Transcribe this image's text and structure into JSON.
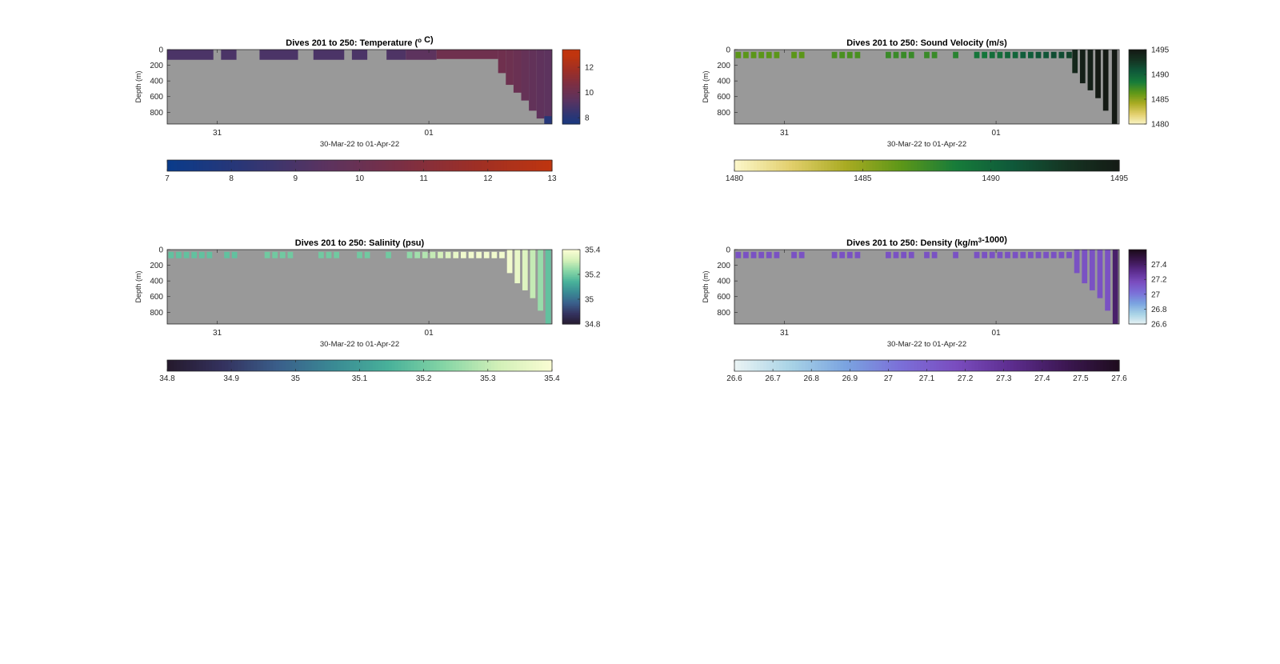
{
  "figure": {
    "background": "#ffffff",
    "axis_color": "#262626",
    "nodata_color": "#999999"
  },
  "chart_data": [
    {
      "type": "heatmap",
      "title_parts": [
        {
          "t": "Dives 201 to 250: Temperature ("
        },
        {
          "t": "o",
          "sup": true
        },
        {
          "t": " C)"
        }
      ],
      "xlabel": "30-Mar-22 to 01-Apr-22",
      "ylabel": "Depth (m)",
      "xticks": [
        {
          "label": "31",
          "frac": 0.13
        },
        {
          "label": "01",
          "frac": 0.68
        }
      ],
      "yticks": [
        "0",
        "200",
        "400",
        "600",
        "800"
      ],
      "ylim": [
        0,
        950
      ],
      "sideColorbar": {
        "ticks": [
          "12",
          "10",
          "8"
        ],
        "range": [
          7.5,
          13.4
        ]
      },
      "bottomColorbar": {
        "ticks": [
          "7",
          "8",
          "9",
          "10",
          "11",
          "12",
          "13"
        ],
        "range": [
          7,
          13
        ]
      },
      "colormap": [
        "#0a3b8a",
        "#2c3675",
        "#5a3360",
        "#7a2f45",
        "#9e2f25",
        "#c0350e"
      ],
      "layout": "surface_band",
      "surface_band": {
        "segments": [
          {
            "x0": 0.0,
            "x1": 0.12,
            "depth": 130,
            "value": 9.0
          },
          {
            "x0": 0.14,
            "x1": 0.18,
            "depth": 130,
            "value": 9.0
          },
          {
            "x0": 0.24,
            "x1": 0.34,
            "depth": 130,
            "value": 9.0
          },
          {
            "x0": 0.38,
            "x1": 0.46,
            "depth": 130,
            "value": 9.0
          },
          {
            "x0": 0.48,
            "x1": 0.52,
            "depth": 130,
            "value": 9.0
          },
          {
            "x0": 0.57,
            "x1": 0.62,
            "depth": 130,
            "value": 9.1
          },
          {
            "x0": 0.62,
            "x1": 0.7,
            "depth": 130,
            "value": 9.5
          },
          {
            "x0": 0.7,
            "x1": 0.86,
            "depth": 120,
            "value": 10.2
          }
        ],
        "deep_columns": [
          {
            "x0": 0.86,
            "x1": 0.88,
            "depth": 300,
            "value": 10.2
          },
          {
            "x0": 0.88,
            "x1": 0.9,
            "depth": 450,
            "value": 10.1
          },
          {
            "x0": 0.9,
            "x1": 0.92,
            "depth": 550,
            "value": 10.0
          },
          {
            "x0": 0.92,
            "x1": 0.94,
            "depth": 650,
            "value": 9.8
          },
          {
            "x0": 0.94,
            "x1": 0.96,
            "depth": 780,
            "value": 9.7
          },
          {
            "x0": 0.96,
            "x1": 0.98,
            "depth": 880,
            "value": 9.6
          },
          {
            "x0": 0.98,
            "x1": 1.0,
            "depth": 950,
            "value": 9.5
          }
        ],
        "deep_value": 8.0
      }
    },
    {
      "type": "heatmap",
      "title_parts": [
        {
          "t": "Dives 201 to 250: Sound Velocity (m/s)"
        }
      ],
      "xlabel": "30-Mar-22 to 01-Apr-22",
      "ylabel": "Depth (m)",
      "xticks": [
        {
          "label": "31",
          "frac": 0.13
        },
        {
          "label": "01",
          "frac": 0.68
        }
      ],
      "yticks": [
        "0",
        "200",
        "400",
        "600",
        "800"
      ],
      "ylim": [
        0,
        950
      ],
      "sideColorbar": {
        "ticks": [
          "1495",
          "1490",
          "1485",
          "1480"
        ],
        "range": [
          1480,
          1495
        ]
      },
      "bottomColorbar": {
        "ticks": [
          "1480",
          "1485",
          "1490",
          "1495"
        ],
        "range": [
          1480,
          1495
        ]
      },
      "colormap": [
        "#fbf6c8",
        "#e2cf6c",
        "#a9ab22",
        "#5d9718",
        "#177c3a",
        "#0f5a3a",
        "#153523",
        "#141a14"
      ],
      "layout": "profiles",
      "profiles": {
        "shallow_depth": 110,
        "columns": [
          {
            "x": 0.01,
            "depth": 110,
            "value": 1486.5
          },
          {
            "x": 0.03,
            "depth": 110,
            "value": 1486.5
          },
          {
            "x": 0.05,
            "depth": 110,
            "value": 1486.5
          },
          {
            "x": 0.07,
            "depth": 110,
            "value": 1486.5
          },
          {
            "x": 0.09,
            "depth": 110,
            "value": 1486.5
          },
          {
            "x": 0.11,
            "depth": 110,
            "value": 1486.5
          },
          {
            "x": 0.155,
            "depth": 110,
            "value": 1486.5
          },
          {
            "x": 0.175,
            "depth": 110,
            "value": 1486.5
          },
          {
            "x": 0.26,
            "depth": 110,
            "value": 1487
          },
          {
            "x": 0.28,
            "depth": 110,
            "value": 1487
          },
          {
            "x": 0.3,
            "depth": 110,
            "value": 1487
          },
          {
            "x": 0.32,
            "depth": 110,
            "value": 1487
          },
          {
            "x": 0.4,
            "depth": 110,
            "value": 1487.5
          },
          {
            "x": 0.42,
            "depth": 110,
            "value": 1487.5
          },
          {
            "x": 0.44,
            "depth": 110,
            "value": 1487.5
          },
          {
            "x": 0.46,
            "depth": 110,
            "value": 1487.5
          },
          {
            "x": 0.5,
            "depth": 110,
            "value": 1487.5
          },
          {
            "x": 0.52,
            "depth": 110,
            "value": 1487.5
          },
          {
            "x": 0.575,
            "depth": 110,
            "value": 1488
          },
          {
            "x": 0.63,
            "depth": 110,
            "value": 1489
          },
          {
            "x": 0.65,
            "depth": 110,
            "value": 1489
          },
          {
            "x": 0.67,
            "depth": 110,
            "value": 1489.5
          },
          {
            "x": 0.69,
            "depth": 110,
            "value": 1489.5
          },
          {
            "x": 0.71,
            "depth": 110,
            "value": 1490
          },
          {
            "x": 0.73,
            "depth": 110,
            "value": 1490
          },
          {
            "x": 0.75,
            "depth": 110,
            "value": 1490.5
          },
          {
            "x": 0.77,
            "depth": 110,
            "value": 1490.5
          },
          {
            "x": 0.79,
            "depth": 110,
            "value": 1491
          },
          {
            "x": 0.81,
            "depth": 110,
            "value": 1491
          },
          {
            "x": 0.83,
            "depth": 110,
            "value": 1491.5
          },
          {
            "x": 0.85,
            "depth": 110,
            "value": 1491.5
          },
          {
            "x": 0.87,
            "depth": 110,
            "value": 1492
          },
          {
            "x": 0.885,
            "depth": 300,
            "value": 1494
          },
          {
            "x": 0.905,
            "depth": 430,
            "value": 1494.5
          },
          {
            "x": 0.925,
            "depth": 520,
            "value": 1494.5
          },
          {
            "x": 0.945,
            "depth": 620,
            "value": 1495
          },
          {
            "x": 0.965,
            "depth": 780,
            "value": 1495
          },
          {
            "x": 0.988,
            "depth": 950,
            "value": 1495
          }
        ]
      }
    },
    {
      "type": "heatmap",
      "title_parts": [
        {
          "t": "Dives 201 to 250: Salinity (psu)"
        }
      ],
      "xlabel": "30-Mar-22 to 01-Apr-22",
      "ylabel": "Depth (m)",
      "xticks": [
        {
          "label": "31",
          "frac": 0.13
        },
        {
          "label": "01",
          "frac": 0.68
        }
      ],
      "yticks": [
        "0",
        "200",
        "400",
        "600",
        "800"
      ],
      "ylim": [
        0,
        950
      ],
      "sideColorbar": {
        "ticks": [
          "35.4",
          "35.2",
          "35",
          "34.8"
        ],
        "range": [
          34.8,
          35.4
        ]
      },
      "bottomColorbar": {
        "ticks": [
          "34.8",
          "34.9",
          "35",
          "35.1",
          "35.2",
          "35.3",
          "35.4"
        ],
        "range": [
          34.8,
          35.4
        ]
      },
      "colormap": [
        "#251a2d",
        "#34325f",
        "#3a5f8b",
        "#3a8a94",
        "#48b19a",
        "#85d5a5",
        "#d2f0b8",
        "#fbfdd4"
      ],
      "layout": "profiles",
      "profiles": {
        "shallow_depth": 110,
        "columns": [
          {
            "x": 0.01,
            "depth": 110,
            "value": 35.18
          },
          {
            "x": 0.03,
            "depth": 110,
            "value": 35.18
          },
          {
            "x": 0.05,
            "depth": 110,
            "value": 35.18
          },
          {
            "x": 0.07,
            "depth": 110,
            "value": 35.18
          },
          {
            "x": 0.09,
            "depth": 110,
            "value": 35.18
          },
          {
            "x": 0.11,
            "depth": 110,
            "value": 35.18
          },
          {
            "x": 0.155,
            "depth": 110,
            "value": 35.18
          },
          {
            "x": 0.175,
            "depth": 110,
            "value": 35.18
          },
          {
            "x": 0.26,
            "depth": 110,
            "value": 35.2
          },
          {
            "x": 0.28,
            "depth": 110,
            "value": 35.2
          },
          {
            "x": 0.3,
            "depth": 110,
            "value": 35.2
          },
          {
            "x": 0.32,
            "depth": 110,
            "value": 35.2
          },
          {
            "x": 0.4,
            "depth": 110,
            "value": 35.2
          },
          {
            "x": 0.42,
            "depth": 110,
            "value": 35.2
          },
          {
            "x": 0.44,
            "depth": 110,
            "value": 35.2
          },
          {
            "x": 0.5,
            "depth": 110,
            "value": 35.2
          },
          {
            "x": 0.52,
            "depth": 110,
            "value": 35.2
          },
          {
            "x": 0.575,
            "depth": 110,
            "value": 35.2
          },
          {
            "x": 0.63,
            "depth": 110,
            "value": 35.24
          },
          {
            "x": 0.65,
            "depth": 110,
            "value": 35.26
          },
          {
            "x": 0.67,
            "depth": 110,
            "value": 35.28
          },
          {
            "x": 0.69,
            "depth": 110,
            "value": 35.3
          },
          {
            "x": 0.71,
            "depth": 110,
            "value": 35.32
          },
          {
            "x": 0.73,
            "depth": 110,
            "value": 35.34
          },
          {
            "x": 0.75,
            "depth": 110,
            "value": 35.36
          },
          {
            "x": 0.77,
            "depth": 110,
            "value": 35.38
          },
          {
            "x": 0.79,
            "depth": 110,
            "value": 35.38
          },
          {
            "x": 0.81,
            "depth": 110,
            "value": 35.38
          },
          {
            "x": 0.83,
            "depth": 110,
            "value": 35.38
          },
          {
            "x": 0.85,
            "depth": 110,
            "value": 35.38
          },
          {
            "x": 0.87,
            "depth": 110,
            "value": 35.38
          },
          {
            "x": 0.89,
            "depth": 300,
            "value": 35.38
          },
          {
            "x": 0.91,
            "depth": 430,
            "value": 35.36
          },
          {
            "x": 0.93,
            "depth": 520,
            "value": 35.34
          },
          {
            "x": 0.95,
            "depth": 620,
            "value": 35.3
          },
          {
            "x": 0.97,
            "depth": 780,
            "value": 35.25
          },
          {
            "x": 0.99,
            "depth": 950,
            "value": 35.18
          }
        ]
      }
    },
    {
      "type": "heatmap",
      "title_parts": [
        {
          "t": "Dives 201 to 250: Density (kg/m"
        },
        {
          "t": "3",
          "sup": true
        },
        {
          "t": "-1000)"
        }
      ],
      "xlabel": "30-Mar-22 to 01-Apr-22",
      "ylabel": "Depth (m)",
      "xticks": [
        {
          "label": "31",
          "frac": 0.13
        },
        {
          "label": "01",
          "frac": 0.68
        }
      ],
      "yticks": [
        "0",
        "200",
        "400",
        "600",
        "800"
      ],
      "ylim": [
        0,
        950
      ],
      "sideColorbar": {
        "ticks": [
          "27.4",
          "27.2",
          "27",
          "26.8",
          "26.6"
        ],
        "range": [
          26.6,
          27.6
        ]
      },
      "bottomColorbar": {
        "ticks": [
          "26.6",
          "26.7",
          "26.8",
          "26.9",
          "27",
          "27.1",
          "27.2",
          "27.3",
          "27.4",
          "27.5",
          "27.6"
        ],
        "range": [
          26.6,
          27.6
        ]
      },
      "colormap": [
        "#e9f3f4",
        "#a8d3e6",
        "#7aa3e0",
        "#7b6fd8",
        "#7a4dbf",
        "#5d2d8f",
        "#3c1752",
        "#1d0c1c"
      ],
      "layout": "profiles",
      "profiles": {
        "shallow_depth": 110,
        "columns": [
          {
            "x": 0.01,
            "depth": 110,
            "value": 27.15
          },
          {
            "x": 0.03,
            "depth": 110,
            "value": 27.15
          },
          {
            "x": 0.05,
            "depth": 110,
            "value": 27.15
          },
          {
            "x": 0.07,
            "depth": 110,
            "value": 27.15
          },
          {
            "x": 0.09,
            "depth": 110,
            "value": 27.15
          },
          {
            "x": 0.11,
            "depth": 110,
            "value": 27.15
          },
          {
            "x": 0.155,
            "depth": 110,
            "value": 27.15
          },
          {
            "x": 0.175,
            "depth": 110,
            "value": 27.15
          },
          {
            "x": 0.26,
            "depth": 110,
            "value": 27.15
          },
          {
            "x": 0.28,
            "depth": 110,
            "value": 27.15
          },
          {
            "x": 0.3,
            "depth": 110,
            "value": 27.15
          },
          {
            "x": 0.32,
            "depth": 110,
            "value": 27.15
          },
          {
            "x": 0.4,
            "depth": 110,
            "value": 27.15
          },
          {
            "x": 0.42,
            "depth": 110,
            "value": 27.15
          },
          {
            "x": 0.44,
            "depth": 110,
            "value": 27.15
          },
          {
            "x": 0.46,
            "depth": 110,
            "value": 27.15
          },
          {
            "x": 0.5,
            "depth": 110,
            "value": 27.15
          },
          {
            "x": 0.52,
            "depth": 110,
            "value": 27.15
          },
          {
            "x": 0.575,
            "depth": 110,
            "value": 27.15
          },
          {
            "x": 0.63,
            "depth": 110,
            "value": 27.15
          },
          {
            "x": 0.65,
            "depth": 110,
            "value": 27.15
          },
          {
            "x": 0.67,
            "depth": 110,
            "value": 27.15
          },
          {
            "x": 0.69,
            "depth": 110,
            "value": 27.15
          },
          {
            "x": 0.71,
            "depth": 110,
            "value": 27.15
          },
          {
            "x": 0.73,
            "depth": 110,
            "value": 27.15
          },
          {
            "x": 0.75,
            "depth": 110,
            "value": 27.15
          },
          {
            "x": 0.77,
            "depth": 110,
            "value": 27.15
          },
          {
            "x": 0.79,
            "depth": 110,
            "value": 27.15
          },
          {
            "x": 0.81,
            "depth": 110,
            "value": 27.15
          },
          {
            "x": 0.83,
            "depth": 110,
            "value": 27.15
          },
          {
            "x": 0.85,
            "depth": 110,
            "value": 27.15
          },
          {
            "x": 0.87,
            "depth": 110,
            "value": 27.15
          },
          {
            "x": 0.89,
            "depth": 300,
            "value": 27.15
          },
          {
            "x": 0.91,
            "depth": 430,
            "value": 27.15
          },
          {
            "x": 0.93,
            "depth": 520,
            "value": 27.15
          },
          {
            "x": 0.95,
            "depth": 620,
            "value": 27.15
          },
          {
            "x": 0.97,
            "depth": 780,
            "value": 27.15
          },
          {
            "x": 0.99,
            "depth": 950,
            "value": 27.4
          }
        ]
      }
    }
  ]
}
